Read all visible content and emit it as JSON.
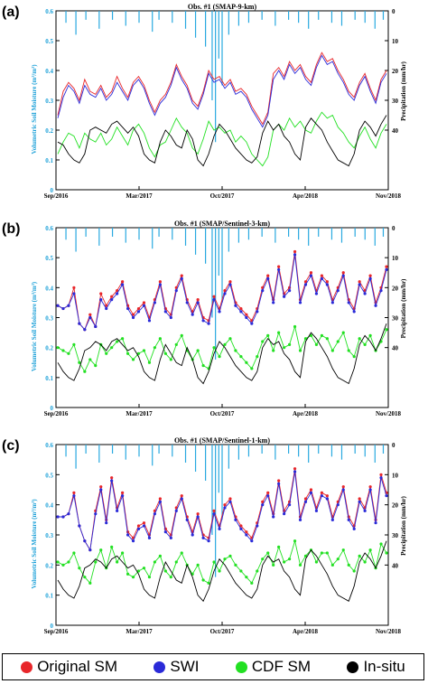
{
  "colors": {
    "original": "#e8262a",
    "swi": "#2a2ad8",
    "cdf": "#22e022",
    "insitu": "#000000",
    "precip": "#29a9e0",
    "ylabel": "#1ba0d8"
  },
  "legend": [
    {
      "key": "original",
      "label": "Original SM"
    },
    {
      "key": "swi",
      "label": "SWI"
    },
    {
      "key": "cdf",
      "label": "CDF SM"
    },
    {
      "key": "insitu",
      "label": "In-situ"
    }
  ],
  "chart_data": [
    {
      "type": "line",
      "panel_label": "(a)",
      "title": "Obs. #1 (SMAP-9-km)",
      "ylabel": "Volumetric Soil Moisture (m³/m³)",
      "ylabel_right": "Precipitation (mm/hr)",
      "ylim": [
        0,
        0.6
      ],
      "yticks": [
        "0",
        "0.1",
        "0.2",
        "0.3",
        "0.4",
        "0.5",
        "0.6"
      ],
      "ylim_right": [
        60,
        0
      ],
      "yticks_right": [
        "0",
        "10",
        "20",
        "30",
        "40"
      ],
      "xticks": [
        "Sep/2016",
        "Mar/2017",
        "Oct/2017",
        "Apr/2018",
        "Nov/2018"
      ],
      "markers": false,
      "series": [
        {
          "key": "original",
          "values": [
            0.25,
            0.33,
            0.36,
            0.34,
            0.3,
            0.37,
            0.33,
            0.32,
            0.35,
            0.31,
            0.33,
            0.38,
            0.34,
            0.31,
            0.36,
            0.38,
            0.35,
            0.3,
            0.26,
            0.3,
            0.32,
            0.36,
            0.42,
            0.38,
            0.35,
            0.3,
            0.28,
            0.33,
            0.4,
            0.37,
            0.38,
            0.35,
            0.37,
            0.33,
            0.34,
            0.32,
            0.28,
            0.25,
            0.22,
            0.26,
            0.39,
            0.41,
            0.38,
            0.43,
            0.4,
            0.42,
            0.38,
            0.36,
            0.42,
            0.46,
            0.43,
            0.44,
            0.4,
            0.37,
            0.33,
            0.31,
            0.36,
            0.39,
            0.34,
            0.3,
            0.37,
            0.4
          ]
        },
        {
          "key": "swi",
          "values": [
            0.24,
            0.31,
            0.35,
            0.33,
            0.29,
            0.35,
            0.32,
            0.31,
            0.34,
            0.3,
            0.32,
            0.36,
            0.33,
            0.3,
            0.35,
            0.37,
            0.34,
            0.29,
            0.25,
            0.29,
            0.31,
            0.35,
            0.41,
            0.37,
            0.34,
            0.29,
            0.27,
            0.32,
            0.39,
            0.36,
            0.37,
            0.34,
            0.36,
            0.32,
            0.33,
            0.31,
            0.27,
            0.24,
            0.21,
            0.25,
            0.37,
            0.4,
            0.37,
            0.42,
            0.39,
            0.41,
            0.37,
            0.35,
            0.41,
            0.45,
            0.42,
            0.43,
            0.39,
            0.36,
            0.32,
            0.3,
            0.35,
            0.38,
            0.33,
            0.29,
            0.36,
            0.39
          ]
        },
        {
          "key": "cdf",
          "values": [
            0.12,
            0.16,
            0.19,
            0.18,
            0.14,
            0.19,
            0.17,
            0.16,
            0.19,
            0.15,
            0.17,
            0.21,
            0.18,
            0.15,
            0.2,
            0.22,
            0.19,
            0.14,
            0.11,
            0.15,
            0.16,
            0.2,
            0.24,
            0.21,
            0.19,
            0.14,
            0.12,
            0.17,
            0.23,
            0.2,
            0.21,
            0.19,
            0.2,
            0.16,
            0.18,
            0.16,
            0.12,
            0.1,
            0.08,
            0.11,
            0.2,
            0.22,
            0.2,
            0.24,
            0.21,
            0.23,
            0.2,
            0.19,
            0.23,
            0.26,
            0.24,
            0.25,
            0.21,
            0.19,
            0.16,
            0.14,
            0.18,
            0.21,
            0.17,
            0.14,
            0.19,
            0.22
          ]
        },
        {
          "key": "insitu",
          "values": [
            0.16,
            0.15,
            0.12,
            0.1,
            0.09,
            0.12,
            0.2,
            0.21,
            0.2,
            0.19,
            0.22,
            0.23,
            0.21,
            0.19,
            0.21,
            0.18,
            0.12,
            0.1,
            0.09,
            0.16,
            0.2,
            0.18,
            0.15,
            0.14,
            0.2,
            0.17,
            0.1,
            0.08,
            0.12,
            0.18,
            0.22,
            0.2,
            0.17,
            0.14,
            0.12,
            0.1,
            0.09,
            0.11,
            0.19,
            0.23,
            0.2,
            0.22,
            0.18,
            0.16,
            0.12,
            0.1,
            0.21,
            0.24,
            0.22,
            0.2,
            0.16,
            0.13,
            0.1,
            0.09,
            0.08,
            0.12,
            0.2,
            0.23,
            0.21,
            0.18,
            0.22,
            0.25
          ]
        }
      ]
    },
    {
      "type": "line",
      "panel_label": "(b)",
      "title": "Obs. #1 (SMAP/Sentinel-3-km)",
      "ylabel": "Volumetric Soil Moisture (m³/m³)",
      "ylabel_right": "Precipitation (mm/hr)",
      "ylim": [
        0,
        0.6
      ],
      "yticks": [
        "0",
        "0.1",
        "0.2",
        "0.3",
        "0.4",
        "0.5",
        "0.6"
      ],
      "ylim_right": [
        60,
        0
      ],
      "yticks_right": [
        "0",
        "10",
        "20",
        "30",
        "40"
      ],
      "xticks": [
        "Sep/2016",
        "Mar/2017",
        "Oct/2017",
        "Apr/2018",
        "Nov/2018"
      ],
      "markers": true,
      "series": [
        {
          "key": "original",
          "values": [
            0.34,
            0.33,
            0.34,
            0.4,
            0.28,
            0.26,
            0.31,
            0.27,
            0.38,
            0.34,
            0.37,
            0.39,
            0.42,
            0.34,
            0.31,
            0.33,
            0.35,
            0.3,
            0.36,
            0.42,
            0.33,
            0.31,
            0.4,
            0.44,
            0.36,
            0.32,
            0.36,
            0.3,
            0.29,
            0.37,
            0.33,
            0.39,
            0.42,
            0.35,
            0.33,
            0.31,
            0.29,
            0.33,
            0.4,
            0.44,
            0.36,
            0.47,
            0.38,
            0.4,
            0.52,
            0.36,
            0.42,
            0.45,
            0.39,
            0.44,
            0.42,
            0.36,
            0.4,
            0.45,
            0.36,
            0.33,
            0.42,
            0.39,
            0.44,
            0.35,
            0.4,
            0.47
          ]
        },
        {
          "key": "swi",
          "values": [
            0.34,
            0.33,
            0.34,
            0.38,
            0.28,
            0.26,
            0.3,
            0.27,
            0.36,
            0.33,
            0.36,
            0.38,
            0.41,
            0.33,
            0.3,
            0.32,
            0.34,
            0.29,
            0.35,
            0.41,
            0.32,
            0.3,
            0.39,
            0.43,
            0.35,
            0.31,
            0.35,
            0.29,
            0.28,
            0.36,
            0.32,
            0.38,
            0.41,
            0.34,
            0.32,
            0.3,
            0.28,
            0.32,
            0.39,
            0.43,
            0.35,
            0.46,
            0.37,
            0.39,
            0.51,
            0.35,
            0.41,
            0.44,
            0.38,
            0.43,
            0.41,
            0.35,
            0.39,
            0.44,
            0.35,
            0.32,
            0.41,
            0.38,
            0.43,
            0.34,
            0.39,
            0.46
          ]
        },
        {
          "key": "cdf",
          "values": [
            0.2,
            0.19,
            0.18,
            0.21,
            0.15,
            0.12,
            0.16,
            0.14,
            0.21,
            0.18,
            0.2,
            0.22,
            0.23,
            0.18,
            0.16,
            0.18,
            0.19,
            0.15,
            0.2,
            0.23,
            0.18,
            0.16,
            0.21,
            0.24,
            0.19,
            0.16,
            0.19,
            0.14,
            0.13,
            0.2,
            0.17,
            0.21,
            0.23,
            0.19,
            0.17,
            0.15,
            0.13,
            0.17,
            0.22,
            0.24,
            0.19,
            0.25,
            0.2,
            0.21,
            0.27,
            0.19,
            0.23,
            0.24,
            0.21,
            0.24,
            0.23,
            0.19,
            0.22,
            0.25,
            0.19,
            0.17,
            0.23,
            0.21,
            0.24,
            0.19,
            0.22,
            0.26
          ]
        },
        {
          "key": "insitu",
          "values": [
            0.15,
            0.12,
            0.1,
            0.09,
            0.13,
            0.19,
            0.2,
            0.22,
            0.21,
            0.19,
            0.22,
            0.23,
            0.21,
            0.19,
            0.2,
            0.17,
            0.12,
            0.1,
            0.09,
            0.16,
            0.21,
            0.18,
            0.15,
            0.14,
            0.2,
            0.16,
            0.1,
            0.08,
            0.12,
            0.18,
            0.22,
            0.2,
            0.17,
            0.14,
            0.12,
            0.1,
            0.09,
            0.12,
            0.2,
            0.23,
            0.21,
            0.22,
            0.18,
            0.16,
            0.12,
            0.1,
            0.22,
            0.25,
            0.23,
            0.2,
            0.17,
            0.13,
            0.1,
            0.09,
            0.08,
            0.13,
            0.21,
            0.24,
            0.22,
            0.19,
            0.23,
            0.28
          ]
        }
      ]
    },
    {
      "type": "line",
      "panel_label": "(c)",
      "title": "Obs. #1 (SMAP/Sentinel-1-km)",
      "ylabel": "Volumetric Soil Moisture (m³/m³)",
      "ylabel_right": "Precipitation (mm/hr)",
      "ylim": [
        0,
        0.6
      ],
      "yticks": [
        "0",
        "0.1",
        "0.2",
        "0.3",
        "0.4",
        "0.5",
        "0.6"
      ],
      "ylim_right": [
        60,
        0
      ],
      "yticks_right": [
        "0",
        "10",
        "20",
        "30",
        "40"
      ],
      "xticks": [
        "Sep/2016",
        "Mar/2017",
        "Oct/2017",
        "Apr/2018",
        "Nov/2018"
      ],
      "markers": true,
      "series": [
        {
          "key": "original",
          "values": [
            0.36,
            0.36,
            0.37,
            0.44,
            0.33,
            0.28,
            0.25,
            0.38,
            0.46,
            0.35,
            0.49,
            0.39,
            0.44,
            0.31,
            0.29,
            0.33,
            0.34,
            0.3,
            0.38,
            0.42,
            0.32,
            0.3,
            0.39,
            0.43,
            0.36,
            0.31,
            0.37,
            0.3,
            0.29,
            0.38,
            0.33,
            0.4,
            0.42,
            0.36,
            0.33,
            0.31,
            0.29,
            0.34,
            0.41,
            0.44,
            0.37,
            0.48,
            0.38,
            0.41,
            0.52,
            0.36,
            0.42,
            0.45,
            0.39,
            0.44,
            0.43,
            0.36,
            0.41,
            0.46,
            0.36,
            0.33,
            0.42,
            0.39,
            0.46,
            0.35,
            0.5,
            0.44
          ]
        },
        {
          "key": "swi",
          "values": [
            0.36,
            0.36,
            0.37,
            0.43,
            0.33,
            0.28,
            0.25,
            0.37,
            0.45,
            0.34,
            0.48,
            0.38,
            0.43,
            0.3,
            0.28,
            0.32,
            0.33,
            0.29,
            0.37,
            0.41,
            0.31,
            0.29,
            0.38,
            0.42,
            0.35,
            0.3,
            0.36,
            0.29,
            0.28,
            0.37,
            0.32,
            0.39,
            0.41,
            0.35,
            0.32,
            0.3,
            0.28,
            0.33,
            0.4,
            0.43,
            0.36,
            0.47,
            0.37,
            0.4,
            0.51,
            0.35,
            0.41,
            0.44,
            0.38,
            0.43,
            0.42,
            0.35,
            0.4,
            0.45,
            0.35,
            0.32,
            0.41,
            0.38,
            0.45,
            0.34,
            0.49,
            0.43
          ]
        },
        {
          "key": "cdf",
          "values": [
            0.21,
            0.2,
            0.21,
            0.24,
            0.19,
            0.16,
            0.14,
            0.21,
            0.25,
            0.19,
            0.26,
            0.21,
            0.24,
            0.17,
            0.16,
            0.18,
            0.19,
            0.16,
            0.21,
            0.23,
            0.18,
            0.16,
            0.21,
            0.24,
            0.2,
            0.17,
            0.2,
            0.15,
            0.14,
            0.21,
            0.18,
            0.22,
            0.23,
            0.2,
            0.18,
            0.16,
            0.14,
            0.18,
            0.22,
            0.24,
            0.2,
            0.26,
            0.21,
            0.22,
            0.28,
            0.2,
            0.23,
            0.25,
            0.21,
            0.24,
            0.24,
            0.2,
            0.22,
            0.25,
            0.2,
            0.18,
            0.23,
            0.21,
            0.25,
            0.19,
            0.27,
            0.24
          ]
        },
        {
          "key": "insitu",
          "values": [
            0.15,
            0.12,
            0.1,
            0.09,
            0.13,
            0.19,
            0.2,
            0.22,
            0.21,
            0.19,
            0.22,
            0.23,
            0.21,
            0.19,
            0.2,
            0.17,
            0.12,
            0.1,
            0.09,
            0.16,
            0.21,
            0.18,
            0.15,
            0.14,
            0.2,
            0.16,
            0.1,
            0.08,
            0.12,
            0.18,
            0.22,
            0.2,
            0.17,
            0.14,
            0.12,
            0.1,
            0.09,
            0.12,
            0.2,
            0.23,
            0.21,
            0.22,
            0.18,
            0.16,
            0.12,
            0.1,
            0.22,
            0.25,
            0.23,
            0.2,
            0.17,
            0.13,
            0.1,
            0.09,
            0.08,
            0.13,
            0.21,
            0.24,
            0.22,
            0.19,
            0.23,
            0.28
          ]
        }
      ]
    }
  ],
  "precipitation": [
    {
      "x": 0.03,
      "v": 4
    },
    {
      "x": 0.06,
      "v": 8
    },
    {
      "x": 0.09,
      "v": 3
    },
    {
      "x": 0.13,
      "v": 6
    },
    {
      "x": 0.17,
      "v": 3
    },
    {
      "x": 0.21,
      "v": 5
    },
    {
      "x": 0.25,
      "v": 4
    },
    {
      "x": 0.29,
      "v": 7
    },
    {
      "x": 0.31,
      "v": 3
    },
    {
      "x": 0.35,
      "v": 4
    },
    {
      "x": 0.39,
      "v": 6
    },
    {
      "x": 0.42,
      "v": 9
    },
    {
      "x": 0.45,
      "v": 12
    },
    {
      "x": 0.47,
      "v": 30
    },
    {
      "x": 0.48,
      "v": 44
    },
    {
      "x": 0.49,
      "v": 16
    },
    {
      "x": 0.5,
      "v": 25
    },
    {
      "x": 0.52,
      "v": 8
    },
    {
      "x": 0.55,
      "v": 5
    },
    {
      "x": 0.58,
      "v": 4
    },
    {
      "x": 0.62,
      "v": 3
    },
    {
      "x": 0.66,
      "v": 5
    },
    {
      "x": 0.7,
      "v": 3
    },
    {
      "x": 0.73,
      "v": 4
    },
    {
      "x": 0.76,
      "v": 6
    },
    {
      "x": 0.79,
      "v": 3
    },
    {
      "x": 0.83,
      "v": 4
    },
    {
      "x": 0.86,
      "v": 5
    },
    {
      "x": 0.9,
      "v": 3
    },
    {
      "x": 0.93,
      "v": 4
    },
    {
      "x": 0.96,
      "v": 6
    },
    {
      "x": 0.985,
      "v": 3
    }
  ]
}
